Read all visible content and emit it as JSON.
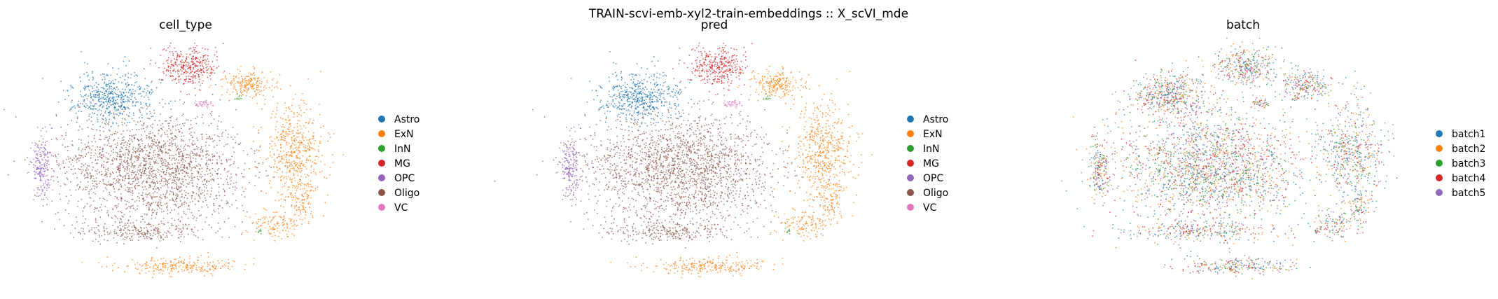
{
  "figure": {
    "suptitle": "TRAIN-scvi-emb-xyl2-train-embeddings :: X_scVI_mde"
  },
  "palette": {
    "Astro": "#1f77b4",
    "ExN": "#ff7f0e",
    "InN": "#2ca02c",
    "MG": "#d62728",
    "OPC": "#9467bd",
    "Oligo": "#8c564b",
    "VC": "#e377c2",
    "batch1": "#1f77b4",
    "batch2": "#ff7f0e",
    "batch3": "#2ca02c",
    "batch4": "#d62728",
    "batch5": "#9467bd"
  },
  "chart_data": [
    {
      "type": "scatter",
      "title": "cell_type",
      "xlabel": "",
      "ylabel": "",
      "axes": "off",
      "grid": false,
      "legend": {
        "placement": "right",
        "entries": [
          "Astro",
          "ExN",
          "InN",
          "MG",
          "OPC",
          "Oligo",
          "VC"
        ]
      },
      "clusters": [
        {
          "category": "Astro",
          "description": "upper-left cluster"
        },
        {
          "category": "MG",
          "description": "upper-center cluster"
        },
        {
          "category": "ExN",
          "description": "upper-right, right-side and bottom clusters"
        },
        {
          "category": "VC",
          "description": "small cluster near center-top"
        },
        {
          "category": "InN",
          "description": "small specks"
        },
        {
          "category": "OPC",
          "description": "left-edge cluster"
        },
        {
          "category": "Oligo",
          "description": "large central cluster"
        }
      ]
    },
    {
      "type": "scatter",
      "title": "pred",
      "xlabel": "",
      "ylabel": "",
      "axes": "off",
      "grid": false,
      "legend": {
        "placement": "right",
        "entries": [
          "Astro",
          "ExN",
          "InN",
          "MG",
          "OPC",
          "Oligo",
          "VC"
        ]
      },
      "clusters": [
        {
          "category": "Astro",
          "description": "upper-left cluster"
        },
        {
          "category": "MG",
          "description": "upper-center cluster"
        },
        {
          "category": "ExN",
          "description": "upper-right, right-side and bottom clusters"
        },
        {
          "category": "VC",
          "description": "small cluster near center-top"
        },
        {
          "category": "InN",
          "description": "small specks"
        },
        {
          "category": "OPC",
          "description": "left-edge cluster"
        },
        {
          "category": "Oligo",
          "description": "large central cluster"
        }
      ]
    },
    {
      "type": "scatter",
      "title": "batch",
      "xlabel": "",
      "ylabel": "",
      "axes": "off",
      "grid": false,
      "legend": {
        "placement": "right",
        "entries": [
          "batch1",
          "batch2",
          "batch3",
          "batch4",
          "batch5"
        ]
      },
      "clusters": [
        {
          "category": "mixed",
          "description": "same embedding colored by batch; batches intermixed"
        }
      ]
    }
  ]
}
